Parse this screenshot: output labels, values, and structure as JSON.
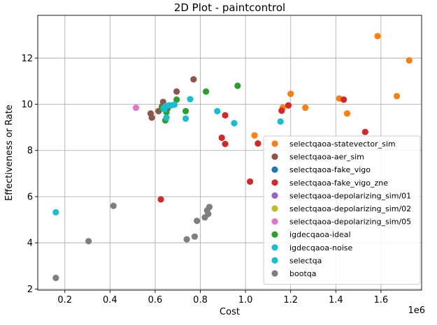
{
  "chart_data": {
    "type": "scatter",
    "title": "2D Plot - paintcontrol",
    "xlabel": "Cost",
    "ylabel": "Effectiveness or Rate",
    "x_offset_label": "1e6",
    "xlim": [
      0.08,
      1.78
    ],
    "ylim": [
      1.95,
      13.85
    ],
    "xticks": [
      0.2,
      0.4,
      0.6,
      0.8,
      1.0,
      1.2,
      1.4,
      1.6
    ],
    "xtick_labels": [
      "0.2",
      "0.4",
      "0.6",
      "0.8",
      "1.0",
      "1.2",
      "1.4",
      "1.6"
    ],
    "yticks": [
      2,
      4,
      6,
      8,
      10,
      12
    ],
    "ytick_labels": [
      "2",
      "4",
      "6",
      "8",
      "10",
      "12"
    ],
    "grid": true,
    "legend_position": "lower-right",
    "series": [
      {
        "name": "selectqaoa-statevector_sim",
        "color": "#ff7f0e",
        "points": [
          [
            1.585,
            12.95
          ],
          [
            1.725,
            11.9
          ],
          [
            1.2,
            10.45
          ],
          [
            1.415,
            10.25
          ],
          [
            1.67,
            10.35
          ],
          [
            1.165,
            9.85
          ],
          [
            1.265,
            9.85
          ],
          [
            1.45,
            9.6
          ],
          [
            1.04,
            8.65
          ]
        ]
      },
      {
        "name": "selectqaoa-aer_sim",
        "color": "#8c564b",
        "points": [
          [
            0.77,
            11.08
          ],
          [
            0.695,
            10.55
          ],
          [
            0.635,
            10.1
          ],
          [
            0.58,
            9.6
          ],
          [
            0.585,
            9.42
          ],
          [
            0.615,
            9.7
          ],
          [
            0.63,
            9.9
          ],
          [
            0.655,
            9.82
          ]
        ]
      },
      {
        "name": "selectqaoa-fake_vigo",
        "color": "#1f77b4",
        "points": []
      },
      {
        "name": "selectqaoa-fake_vigo_zne",
        "color": "#d62728",
        "points": [
          [
            1.435,
            10.2
          ],
          [
            1.19,
            9.95
          ],
          [
            1.16,
            9.72
          ],
          [
            0.91,
            9.52
          ],
          [
            0.895,
            8.55
          ],
          [
            0.91,
            8.28
          ],
          [
            1.055,
            8.3
          ],
          [
            1.53,
            8.8
          ],
          [
            1.02,
            6.65
          ],
          [
            0.625,
            5.88
          ]
        ]
      },
      {
        "name": "selectqaoa-depolarizing_sim/01",
        "color": "#9467bd",
        "points": []
      },
      {
        "name": "selectqaoa-depolarizing_sim/02",
        "color": "#bcbd22",
        "points": []
      },
      {
        "name": "selectqaoa-depolarizing_sim/05",
        "color": "#e377c2",
        "points": [
          [
            0.515,
            9.85
          ]
        ]
      },
      {
        "name": "igdecqaoa-ideal",
        "color": "#2ca02c",
        "points": [
          [
            0.965,
            10.8
          ],
          [
            0.825,
            10.55
          ],
          [
            0.695,
            10.2
          ],
          [
            0.63,
            9.82
          ],
          [
            0.65,
            9.65
          ],
          [
            0.735,
            9.7
          ],
          [
            0.645,
            9.3
          ]
        ]
      },
      {
        "name": "igdecqaoa-noise",
        "color": "#17becf",
        "points": [
          [
            0.755,
            10.22
          ],
          [
            0.875,
            9.7
          ],
          [
            0.65,
            9.42
          ],
          [
            0.735,
            9.38
          ],
          [
            0.95,
            9.18
          ],
          [
            1.155,
            9.25
          ],
          [
            0.64,
            9.85
          ],
          [
            0.66,
            9.95
          ]
        ]
      },
      {
        "name": "selectqa",
        "color": "#17becf",
        "points": [
          [
            0.16,
            5.32
          ],
          [
            0.645,
            9.9
          ],
          [
            0.67,
            9.95
          ],
          [
            0.685,
            9.98
          ],
          [
            0.64,
            9.78
          ]
        ]
      },
      {
        "name": "bootqa",
        "color": "#7f7f7f",
        "points": [
          [
            0.16,
            2.48
          ],
          [
            0.305,
            4.07
          ],
          [
            0.415,
            5.6
          ],
          [
            0.84,
            5.55
          ],
          [
            0.83,
            5.4
          ],
          [
            0.82,
            5.1
          ],
          [
            0.835,
            5.25
          ],
          [
            0.785,
            4.95
          ],
          [
            0.775,
            4.27
          ],
          [
            0.74,
            4.15
          ]
        ]
      }
    ]
  }
}
